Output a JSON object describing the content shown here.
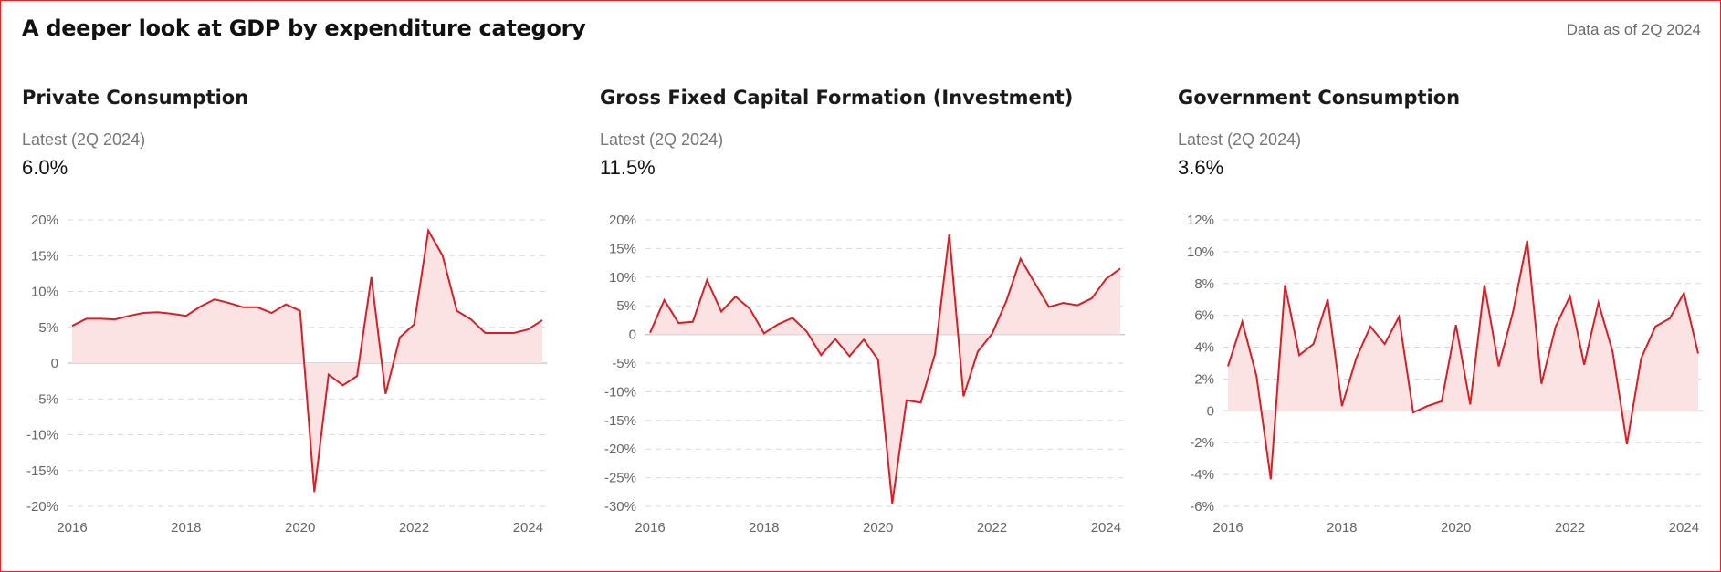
{
  "header": {
    "title": "A deeper look at GDP by expenditure category",
    "data_as_of": "Data as of 2Q 2024"
  },
  "colors": {
    "line": "#d42027",
    "area": "#fbe2e3",
    "grid": "#d9d9d9",
    "zero": "#c9c9d6",
    "frame": "#e8242b"
  },
  "panels": [
    {
      "title": "Private Consumption",
      "latest_label": "Latest (2Q 2024)",
      "latest_value": "6.0%"
    },
    {
      "title": "Gross Fixed Capital Formation (Investment)",
      "latest_label": "Latest (2Q 2024)",
      "latest_value": "11.5%"
    },
    {
      "title": "Government Consumption",
      "latest_label": "Latest (2Q 2024)",
      "latest_value": "3.6%"
    }
  ],
  "chart_data": [
    {
      "type": "area",
      "title": "Private Consumption",
      "xlabel": "",
      "ylabel": "",
      "xlim": [
        2016,
        2024.25
      ],
      "ylim": [
        -20,
        20
      ],
      "yticks": [
        20,
        15,
        10,
        5,
        0,
        -5,
        -10,
        -15,
        -20
      ],
      "ytick_labels": [
        "20%",
        "15%",
        "10%",
        "5%",
        "0",
        "-5%",
        "-10%",
        "-15%",
        "-20%"
      ],
      "xticks": [
        2016,
        2018,
        2020,
        2022,
        2024
      ],
      "xtick_labels": [
        "2016",
        "2018",
        "2020",
        "2022",
        "2024"
      ],
      "grid": "horizontal dashed",
      "series": [
        {
          "x": [
            2016.0,
            2016.25,
            2016.5,
            2016.75,
            2017.0,
            2017.25,
            2017.5,
            2017.75,
            2018.0,
            2018.25,
            2018.5,
            2018.75,
            2019.0,
            2019.25,
            2019.5,
            2019.75,
            2020.0,
            2020.25,
            2020.5,
            2020.75,
            2021.0,
            2021.25,
            2021.5,
            2021.75,
            2022.0,
            2022.25,
            2022.5,
            2022.75,
            2023.0,
            2023.25,
            2023.5,
            2023.75,
            2024.0,
            2024.25
          ],
          "values": [
            5.2,
            6.2,
            6.2,
            6.1,
            6.6,
            7.0,
            7.1,
            6.9,
            6.6,
            7.9,
            8.9,
            8.4,
            7.8,
            7.8,
            7.0,
            8.2,
            7.3,
            -18.0,
            -1.6,
            -3.1,
            -1.8,
            12.0,
            -4.3,
            3.6,
            5.4,
            18.5,
            15.0,
            7.3,
            6.1,
            4.2,
            4.2,
            4.2,
            4.7,
            6.0
          ]
        }
      ]
    },
    {
      "type": "area",
      "title": "Gross Fixed Capital Formation (Investment)",
      "xlabel": "",
      "ylabel": "",
      "xlim": [
        2016,
        2024.25
      ],
      "ylim": [
        -30,
        20
      ],
      "yticks": [
        20,
        15,
        10,
        5,
        0,
        -5,
        -10,
        -15,
        -20,
        -25,
        -30
      ],
      "ytick_labels": [
        "20%",
        "15%",
        "10%",
        "5%",
        "0",
        "-5%",
        "-10%",
        "-15%",
        "-20%",
        "-25%",
        "-30%"
      ],
      "xticks": [
        2016,
        2018,
        2020,
        2022,
        2024
      ],
      "xtick_labels": [
        "2016",
        "2018",
        "2020",
        "2022",
        "2024"
      ],
      "grid": "horizontal dashed",
      "series": [
        {
          "x": [
            2016.0,
            2016.25,
            2016.5,
            2016.75,
            2017.0,
            2017.25,
            2017.5,
            2017.75,
            2018.0,
            2018.25,
            2018.5,
            2018.75,
            2019.0,
            2019.25,
            2019.5,
            2019.75,
            2020.0,
            2020.25,
            2020.5,
            2020.75,
            2021.0,
            2021.25,
            2021.5,
            2021.75,
            2022.0,
            2022.25,
            2022.5,
            2022.75,
            2023.0,
            2023.25,
            2023.5,
            2023.75,
            2024.0,
            2024.25
          ],
          "values": [
            0.3,
            6.0,
            2.0,
            2.2,
            9.5,
            4.0,
            6.6,
            4.5,
            0.2,
            1.8,
            2.9,
            0.5,
            -3.6,
            -0.8,
            -3.8,
            -0.9,
            -4.4,
            -29.5,
            -11.5,
            -11.9,
            -3.4,
            17.5,
            -10.8,
            -3.0,
            0.1,
            5.8,
            13.2,
            9.0,
            4.8,
            5.5,
            5.1,
            6.3,
            9.7,
            11.5
          ]
        }
      ]
    },
    {
      "type": "area",
      "title": "Government Consumption",
      "xlabel": "",
      "ylabel": "",
      "xlim": [
        2016,
        2024.25
      ],
      "ylim": [
        -6,
        12
      ],
      "yticks": [
        12,
        10,
        8,
        6,
        4,
        2,
        0,
        -2,
        -4,
        -6
      ],
      "ytick_labels": [
        "12%",
        "10%",
        "8%",
        "6%",
        "4%",
        "2%",
        "0",
        "-2%",
        "-4%",
        "-6%"
      ],
      "xticks": [
        2016,
        2018,
        2020,
        2022,
        2024
      ],
      "xtick_labels": [
        "2016",
        "2018",
        "2020",
        "2022",
        "2024"
      ],
      "grid": "horizontal dashed",
      "series": [
        {
          "x": [
            2016.0,
            2016.25,
            2016.5,
            2016.75,
            2017.0,
            2017.25,
            2017.5,
            2017.75,
            2018.0,
            2018.25,
            2018.5,
            2018.75,
            2019.0,
            2019.25,
            2019.5,
            2019.75,
            2020.0,
            2020.25,
            2020.5,
            2020.75,
            2021.0,
            2021.25,
            2021.5,
            2021.75,
            2022.0,
            2022.25,
            2022.5,
            2022.75,
            2023.0,
            2023.25,
            2023.5,
            2023.75,
            2024.0,
            2024.25
          ],
          "values": [
            2.8,
            5.6,
            2.2,
            -4.3,
            7.9,
            3.5,
            4.2,
            7.0,
            0.3,
            3.3,
            5.3,
            4.2,
            5.9,
            -0.1,
            0.3,
            0.6,
            5.4,
            0.4,
            7.9,
            2.8,
            6.2,
            10.7,
            1.7,
            5.3,
            7.2,
            2.9,
            6.8,
            3.7,
            -2.1,
            3.3,
            5.3,
            5.8,
            7.4,
            3.6
          ]
        }
      ]
    }
  ]
}
